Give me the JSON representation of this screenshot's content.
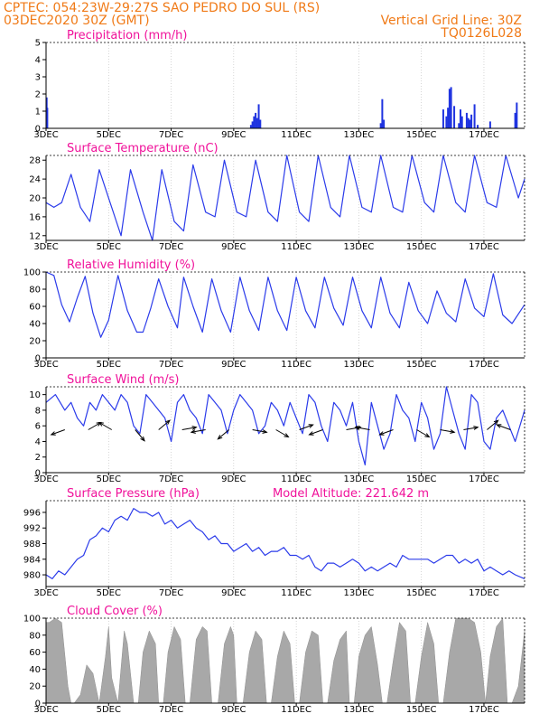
{
  "header": {
    "line1": "CPTEC:   054:23W-29:27S   SAO PEDRO DO SUL (RS)",
    "line2_left": "03DEC2020 30Z (GMT)",
    "line2_right": "Vertical Grid Line: 30Z",
    "line3_right": "TQ0126L028"
  },
  "colors": {
    "series": "#2b3bea",
    "bars": "#1f33e0",
    "cloud": "#a8a8a8",
    "title": "#f0119a",
    "header": "#f07a17",
    "arrows": "#000000"
  },
  "x_axis_labels": [
    "3DEC",
    "5DEC",
    "7DEC",
    "9DEC",
    "11DEC",
    "13DEC",
    "15DEC",
    "17DEC"
  ],
  "chart_data": [
    {
      "id": "precip",
      "type": "bar",
      "title": "Precipitation (mm/h)",
      "xlim": [
        0,
        15.3
      ],
      "ylim": [
        0,
        5
      ],
      "yticks": [
        0,
        1,
        2,
        3,
        4,
        5
      ],
      "x": [
        0.02,
        0.04,
        6.55,
        6.6,
        6.65,
        6.7,
        6.75,
        6.8,
        6.85,
        10.7,
        10.75,
        10.8,
        12.7,
        12.8,
        12.85,
        12.9,
        12.95,
        13.05,
        13.2,
        13.25,
        13.3,
        13.45,
        13.5,
        13.55,
        13.6,
        13.7,
        13.8,
        14.2,
        15.0,
        15.05
      ],
      "values": [
        1.8,
        1.2,
        0.2,
        0.4,
        0.7,
        0.9,
        0.6,
        1.4,
        0.5,
        0.3,
        1.7,
        0.5,
        1.1,
        0.7,
        1.2,
        2.3,
        2.4,
        1.3,
        0.3,
        1.1,
        0.7,
        0.9,
        0.6,
        0.5,
        0.8,
        1.4,
        0.2,
        0.4,
        0.9,
        1.5
      ]
    },
    {
      "id": "temp",
      "type": "line",
      "title": "Surface Temperature (nC)",
      "xlim": [
        0,
        15.3
      ],
      "ylim": [
        11,
        29
      ],
      "yticks": [
        12,
        16,
        20,
        24,
        28
      ],
      "x": [
        0,
        0.25,
        0.5,
        0.8,
        1.1,
        1.4,
        1.7,
        2.1,
        2.4,
        2.7,
        3.1,
        3.4,
        3.7,
        4.1,
        4.4,
        4.7,
        5.1,
        5.4,
        5.7,
        6.1,
        6.4,
        6.7,
        7.1,
        7.4,
        7.7,
        8.1,
        8.4,
        8.7,
        9.1,
        9.4,
        9.7,
        10.1,
        10.4,
        10.7,
        11.1,
        11.4,
        11.7,
        12.1,
        12.4,
        12.7,
        13.1,
        13.4,
        13.7,
        14.1,
        14.4,
        14.7,
        15.1,
        15.3
      ],
      "values": [
        19,
        18,
        19,
        25,
        18,
        15,
        26,
        18,
        12,
        26,
        17,
        11,
        26,
        15,
        13,
        27,
        17,
        16,
        28,
        17,
        16,
        28,
        17,
        15,
        29,
        17,
        15,
        29,
        18,
        16,
        29,
        18,
        17,
        29,
        18,
        17,
        29,
        19,
        17,
        29,
        19,
        17,
        29,
        19,
        18,
        29,
        20,
        24
      ]
    },
    {
      "id": "rh",
      "type": "line",
      "title": "Relative Humidity (%)",
      "xlim": [
        0,
        15.3
      ],
      "ylim": [
        0,
        100
      ],
      "yticks": [
        0,
        20,
        40,
        60,
        80,
        100
      ],
      "x": [
        0,
        0.25,
        0.5,
        0.75,
        1.0,
        1.25,
        1.5,
        1.75,
        2.0,
        2.3,
        2.6,
        2.9,
        3.1,
        3.35,
        3.6,
        3.9,
        4.2,
        4.4,
        4.7,
        5.0,
        5.3,
        5.6,
        5.9,
        6.2,
        6.5,
        6.8,
        7.1,
        7.4,
        7.7,
        8.0,
        8.3,
        8.6,
        8.9,
        9.2,
        9.5,
        9.8,
        10.1,
        10.4,
        10.7,
        11.0,
        11.3,
        11.6,
        11.9,
        12.2,
        12.5,
        12.8,
        13.1,
        13.4,
        13.7,
        14.0,
        14.3,
        14.6,
        14.9,
        15.3
      ],
      "values": [
        100,
        96,
        62,
        42,
        70,
        95,
        52,
        24,
        44,
        96,
        55,
        30,
        30,
        58,
        92,
        60,
        35,
        94,
        60,
        30,
        92,
        55,
        30,
        94,
        55,
        32,
        94,
        55,
        32,
        94,
        55,
        35,
        94,
        58,
        38,
        94,
        55,
        35,
        94,
        52,
        35,
        88,
        55,
        40,
        78,
        52,
        42,
        92,
        58,
        48,
        98,
        50,
        40,
        62
      ]
    },
    {
      "id": "wind",
      "type": "line",
      "title": "Surface Wind (m/s)",
      "xlim": [
        0,
        15.3
      ],
      "ylim": [
        0,
        11
      ],
      "yticks": [
        0,
        2,
        4,
        6,
        8,
        10
      ],
      "x": [
        0,
        0.3,
        0.6,
        0.8,
        1.0,
        1.2,
        1.4,
        1.6,
        1.8,
        2.0,
        2.2,
        2.4,
        2.6,
        2.8,
        3.0,
        3.2,
        3.4,
        3.6,
        3.8,
        4.0,
        4.2,
        4.4,
        4.6,
        4.8,
        5.0,
        5.2,
        5.4,
        5.6,
        5.8,
        6.0,
        6.2,
        6.4,
        6.6,
        6.8,
        7.0,
        7.2,
        7.4,
        7.6,
        7.8,
        8.0,
        8.2,
        8.4,
        8.6,
        8.8,
        9.0,
        9.2,
        9.4,
        9.6,
        9.8,
        10.0,
        10.2,
        10.4,
        10.6,
        10.8,
        11.0,
        11.2,
        11.4,
        11.6,
        11.8,
        12.0,
        12.2,
        12.4,
        12.6,
        12.8,
        13.0,
        13.2,
        13.4,
        13.6,
        13.8,
        14.0,
        14.2,
        14.4,
        14.6,
        14.8,
        15.0,
        15.3
      ],
      "values": [
        9,
        10,
        8,
        9,
        7,
        6,
        9,
        8,
        10,
        9,
        8,
        10,
        9,
        6,
        5,
        10,
        9,
        8,
        7,
        4,
        9,
        10,
        8,
        7,
        5,
        10,
        9,
        8,
        5,
        8,
        10,
        9,
        8,
        5,
        6,
        9,
        8,
        6,
        9,
        7,
        5,
        10,
        9,
        6,
        4,
        9,
        8,
        6,
        9,
        4,
        1,
        9,
        6,
        3,
        5,
        10,
        8,
        7,
        4,
        9,
        7,
        3,
        5,
        11,
        8,
        5,
        3,
        10,
        9,
        4,
        3,
        7,
        8,
        6,
        4,
        8
      ]
    },
    {
      "id": "pressure",
      "type": "line",
      "title": "Surface Pressure (hPa)",
      "annotation": "Model Altitude: 221.642 m",
      "xlim": [
        0,
        15.3
      ],
      "ylim": [
        977,
        999
      ],
      "yticks": [
        980,
        984,
        988,
        992,
        996
      ],
      "x": [
        0,
        0.2,
        0.4,
        0.6,
        0.8,
        1.0,
        1.2,
        1.4,
        1.6,
        1.8,
        2.0,
        2.2,
        2.4,
        2.6,
        2.8,
        3.0,
        3.2,
        3.4,
        3.6,
        3.8,
        4.0,
        4.2,
        4.4,
        4.6,
        4.8,
        5.0,
        5.2,
        5.4,
        5.6,
        5.8,
        6.0,
        6.2,
        6.4,
        6.6,
        6.8,
        7.0,
        7.2,
        7.4,
        7.6,
        7.8,
        8.0,
        8.2,
        8.4,
        8.6,
        8.8,
        9.0,
        9.2,
        9.4,
        9.6,
        9.8,
        10.0,
        10.2,
        10.4,
        10.6,
        10.8,
        11.0,
        11.2,
        11.4,
        11.6,
        11.8,
        12.0,
        12.2,
        12.4,
        12.6,
        12.8,
        13.0,
        13.2,
        13.4,
        13.6,
        13.8,
        14.0,
        14.2,
        14.4,
        14.6,
        14.8,
        15.0,
        15.3
      ],
      "values": [
        980,
        979,
        981,
        980,
        982,
        984,
        985,
        989,
        990,
        992,
        991,
        994,
        995,
        994,
        997,
        996,
        996,
        995,
        996,
        993,
        994,
        992,
        993,
        994,
        992,
        991,
        989,
        990,
        988,
        988,
        986,
        987,
        988,
        986,
        987,
        985,
        986,
        986,
        987,
        985,
        985,
        984,
        985,
        982,
        981,
        983,
        983,
        982,
        983,
        984,
        983,
        981,
        982,
        981,
        982,
        983,
        982,
        985,
        984,
        984,
        984,
        984,
        983,
        984,
        985,
        985,
        983,
        984,
        983,
        984,
        981,
        982,
        981,
        980,
        981,
        980,
        979
      ]
    },
    {
      "id": "cloud",
      "type": "area",
      "title": "Cloud Cover (%)",
      "xlim": [
        0,
        15.3
      ],
      "ylim": [
        0,
        100
      ],
      "yticks": [
        0,
        20,
        40,
        60,
        80,
        100
      ],
      "x": [
        0,
        0.1,
        0.3,
        0.5,
        0.7,
        0.8,
        0.9,
        1.1,
        1.3,
        1.5,
        1.7,
        1.9,
        2.0,
        2.1,
        2.3,
        2.5,
        2.6,
        2.8,
        2.95,
        3.1,
        3.3,
        3.5,
        3.6,
        3.75,
        3.9,
        4.1,
        4.3,
        4.45,
        4.6,
        4.8,
        5.0,
        5.15,
        5.3,
        5.5,
        5.7,
        5.9,
        6.0,
        6.1,
        6.3,
        6.5,
        6.7,
        6.9,
        7.05,
        7.2,
        7.4,
        7.6,
        7.8,
        7.95,
        8.1,
        8.3,
        8.5,
        8.7,
        8.85,
        9.0,
        9.2,
        9.4,
        9.6,
        9.7,
        9.85,
        10.0,
        10.2,
        10.4,
        10.6,
        10.75,
        10.9,
        11.1,
        11.3,
        11.5,
        11.65,
        11.8,
        12.0,
        12.2,
        12.4,
        12.55,
        12.7,
        12.9,
        13.1,
        13.3,
        13.5,
        13.7,
        13.9,
        14.05,
        14.2,
        14.4,
        14.6,
        14.75,
        14.9,
        15.1,
        15.3
      ],
      "values": [
        95,
        95,
        100,
        95,
        20,
        0,
        0,
        10,
        45,
        35,
        0,
        55,
        90,
        30,
        0,
        85,
        70,
        0,
        0,
        60,
        85,
        70,
        0,
        0,
        60,
        90,
        75,
        0,
        0,
        75,
        90,
        85,
        0,
        0,
        70,
        90,
        80,
        0,
        0,
        60,
        85,
        75,
        0,
        0,
        55,
        85,
        70,
        0,
        0,
        60,
        85,
        80,
        0,
        0,
        50,
        75,
        85,
        0,
        0,
        55,
        80,
        90,
        45,
        0,
        0,
        50,
        95,
        85,
        0,
        0,
        55,
        95,
        70,
        0,
        0,
        60,
        100,
        100,
        100,
        95,
        60,
        0,
        55,
        90,
        100,
        0,
        0,
        20,
        85
      ]
    }
  ]
}
